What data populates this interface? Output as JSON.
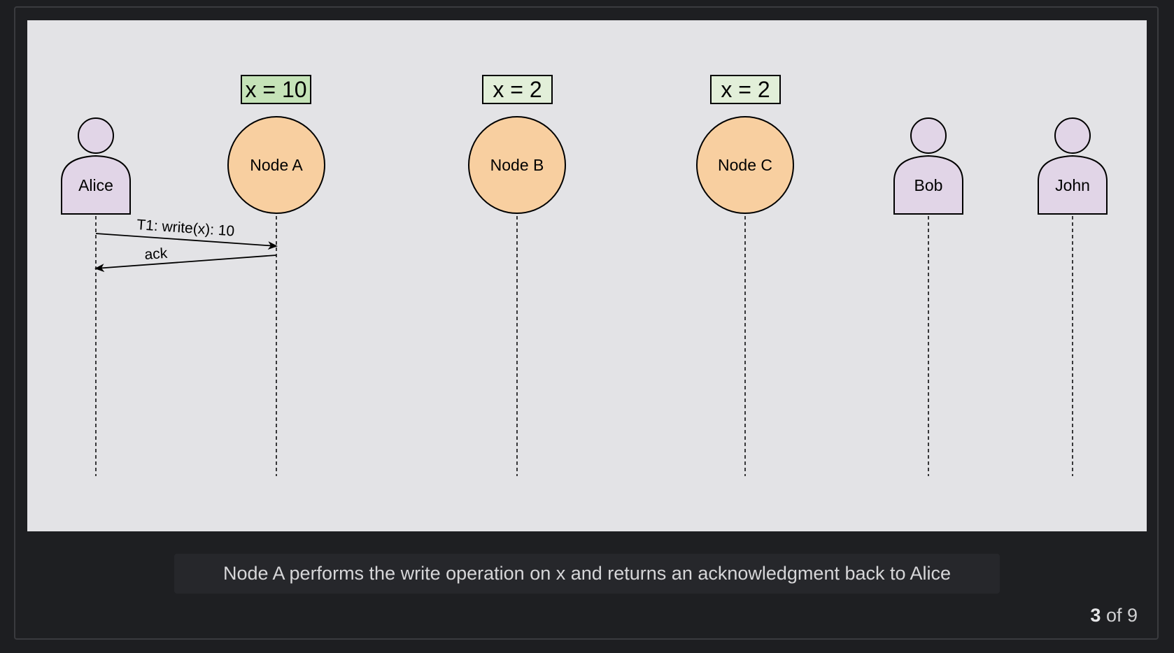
{
  "diagram": {
    "actors": [
      {
        "id": "alice",
        "label": "Alice"
      },
      {
        "id": "bob",
        "label": "Bob"
      },
      {
        "id": "john",
        "label": "John"
      }
    ],
    "nodes": [
      {
        "id": "node-a",
        "label": "Node A",
        "value_label": "x = 10"
      },
      {
        "id": "node-b",
        "label": "Node B",
        "value_label": "x = 2"
      },
      {
        "id": "node-c",
        "label": "Node C",
        "value_label": "x = 2"
      }
    ],
    "messages": [
      {
        "from": "Alice",
        "to": "Node A",
        "label": "T1: write(x): 10"
      },
      {
        "from": "Node A",
        "to": "Alice",
        "label": "ack"
      }
    ]
  },
  "caption": "Node A performs the write operation on x and returns an acknowledgment back to Alice",
  "pager": {
    "current": "3",
    "suffix": " of 9"
  },
  "colors": {
    "background": "#1d1e21",
    "canvas": "#e3e3e6",
    "person_fill": "#e1d5e7",
    "node_fill": "#f8cfa0",
    "value_box_highlight": "#c5e3b8",
    "value_box_normal": "#e2efd9",
    "stroke": "#000000"
  }
}
